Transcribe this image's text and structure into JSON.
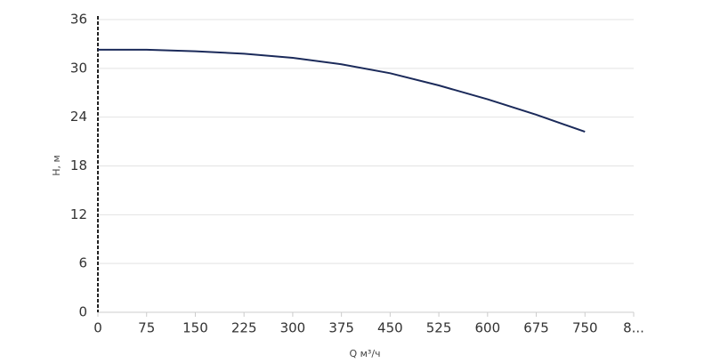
{
  "chart_data": {
    "type": "line",
    "x_label": "Q м³/ч",
    "y_label": "H, м",
    "x": [
      0,
      75,
      150,
      225,
      300,
      375,
      450,
      525,
      600,
      675,
      750
    ],
    "series": [
      {
        "name": "H",
        "color": "#1b2a5a",
        "values": [
          32.3,
          32.3,
          32.1,
          31.8,
          31.3,
          30.5,
          29.4,
          27.9,
          26.2,
          24.3,
          22.2
        ]
      }
    ],
    "xlim": [
      0,
      825
    ],
    "xticks": [
      0,
      75,
      150,
      225,
      300,
      375,
      450,
      525,
      600,
      675,
      750,
      {
        "value": 825,
        "label": "8..."
      }
    ],
    "ylim": [
      0,
      36
    ],
    "yticks": [
      0,
      6,
      12,
      18,
      24,
      30,
      36
    ],
    "grid": true
  }
}
